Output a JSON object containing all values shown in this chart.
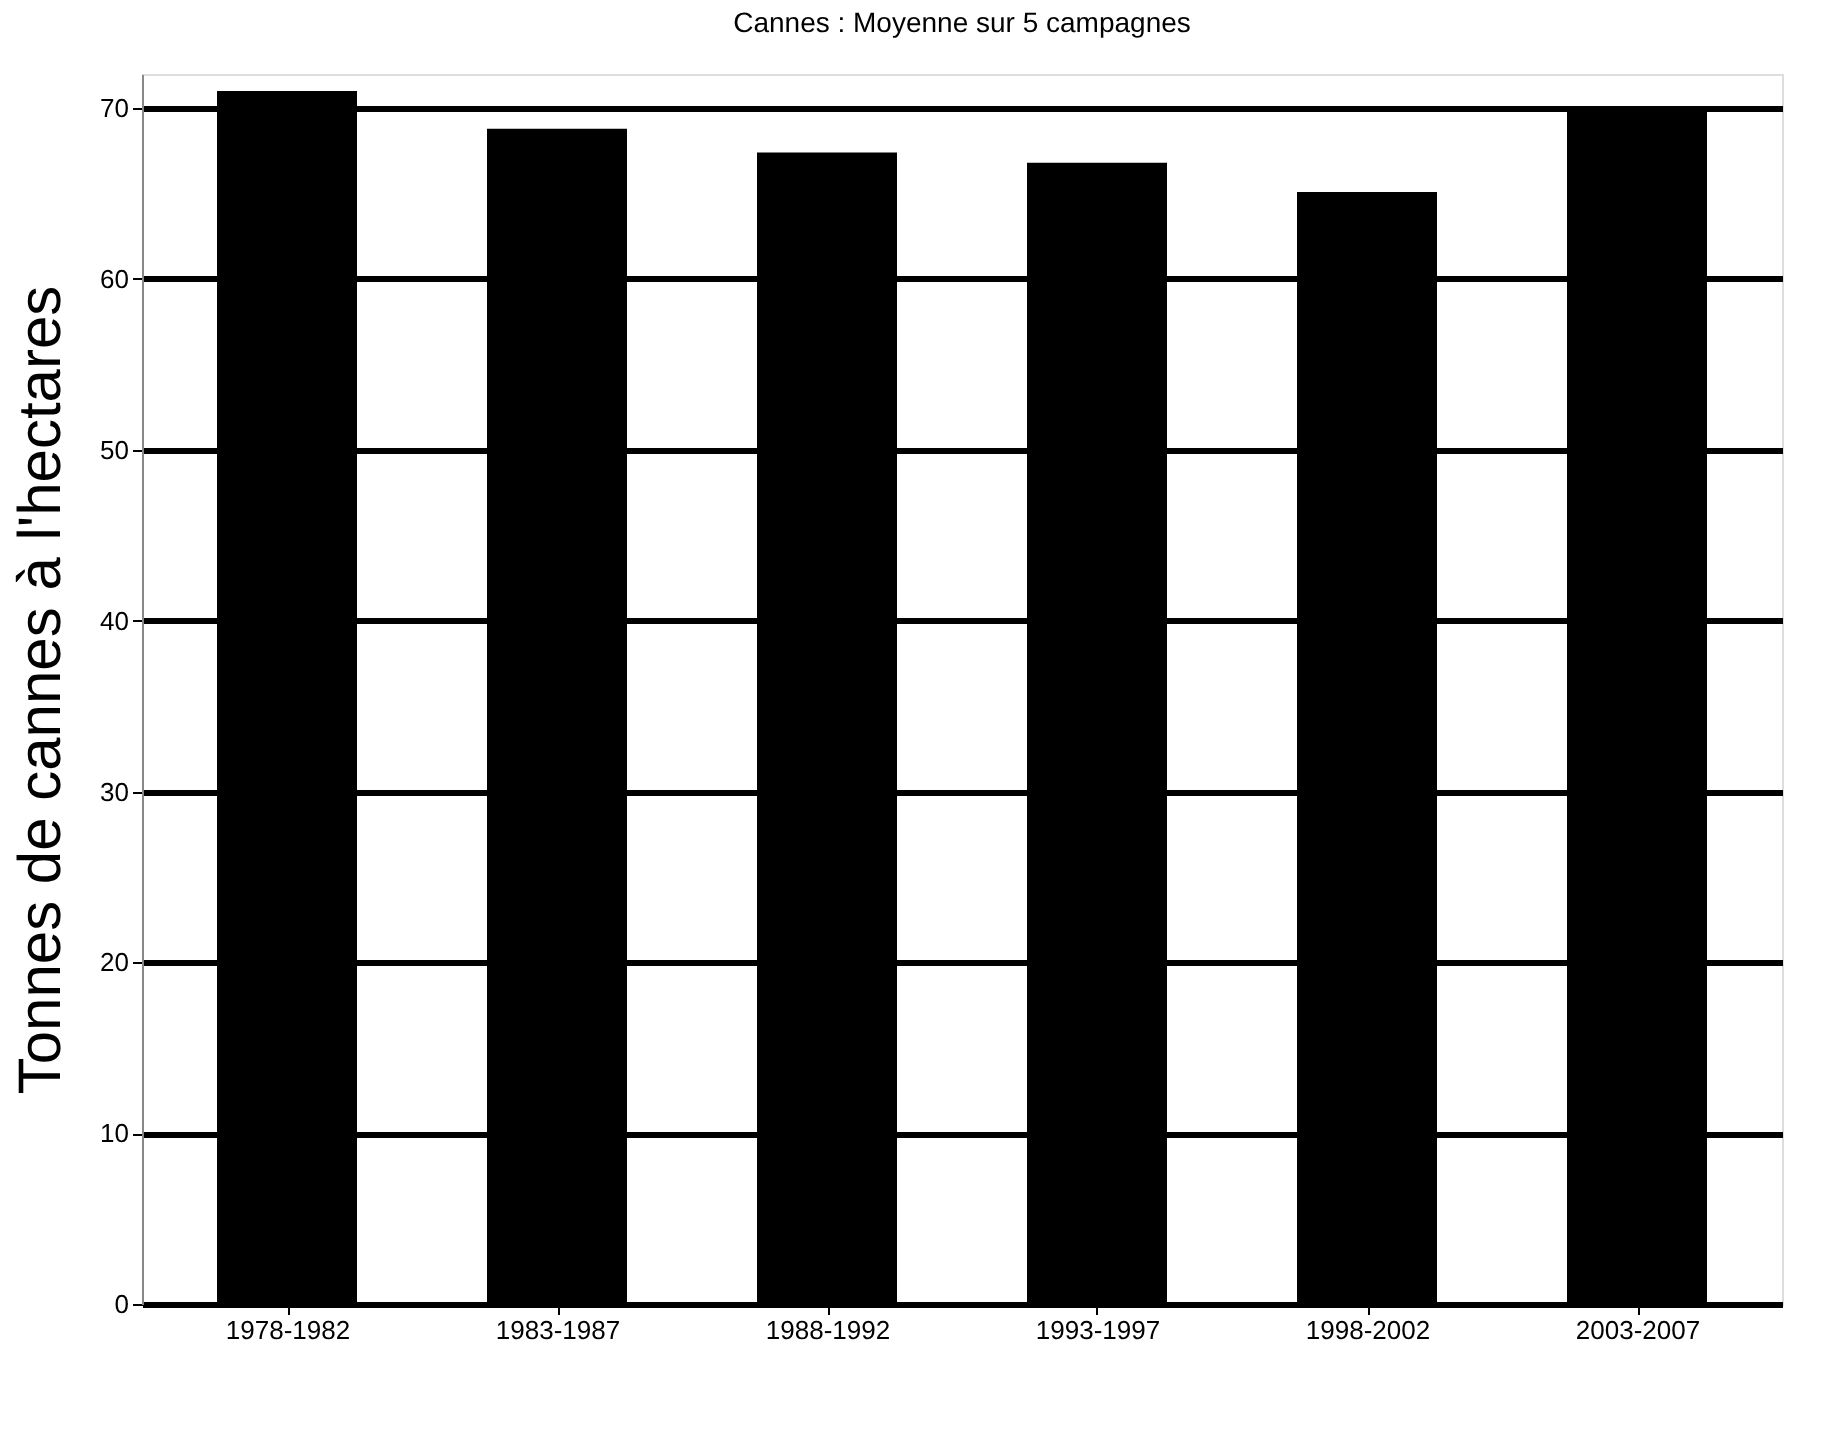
{
  "chart_data": {
    "type": "bar",
    "title": "Cannes : Moyenne sur 5 campagnes",
    "ylabel": "Tonnes de cannes à l'hectares",
    "categories": [
      "1978-1982",
      "1983-1987",
      "1988-1992",
      "1993-1997",
      "1998-2002",
      "2003-2007"
    ],
    "values": [
      71.0,
      68.8,
      67.4,
      66.8,
      65.1,
      70.0
    ],
    "color": "#000000",
    "ylim": [
      0,
      72
    ],
    "yticks": [
      0,
      10,
      20,
      30,
      40,
      50,
      60,
      70
    ],
    "grid": "y"
  }
}
